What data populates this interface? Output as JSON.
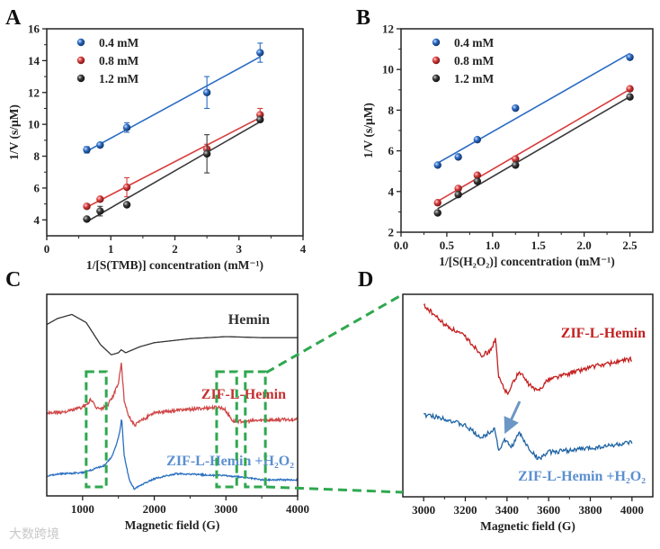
{
  "figure": {
    "panel_letters": [
      "A",
      "B",
      "C",
      "D"
    ],
    "watermark": "大数跨境"
  },
  "chart_data": [
    {
      "panel": "A",
      "type": "scatter",
      "fit": "linear",
      "xlabel": "1/[S(TMB)] concentration (mM⁻¹)",
      "ylabel": "1/V (s/μM)",
      "xlim": [
        0,
        4
      ],
      "ylim": [
        3,
        16
      ],
      "xticks": [
        0,
        1,
        2,
        3,
        4
      ],
      "yticks": [
        4,
        6,
        8,
        10,
        12,
        14,
        16
      ],
      "legend": "top-left",
      "x": [
        0.625,
        0.833,
        1.25,
        2.5,
        3.33
      ],
      "series": [
        {
          "name": "0.4 mM",
          "color": "#2b6cc4",
          "values": [
            8.4,
            8.7,
            9.8,
            12.0,
            14.5
          ],
          "errors": [
            0.2,
            0.1,
            0.3,
            1.0,
            0.6
          ]
        },
        {
          "name": "0.8 mM",
          "color": "#d83c3c",
          "values": [
            4.85,
            5.3,
            6.05,
            8.45,
            10.6
          ],
          "errors": [
            0.1,
            0.1,
            0.6,
            0.3,
            0.4
          ]
        },
        {
          "name": "1.2 mM",
          "color": "#3a3a3a",
          "values": [
            4.05,
            4.55,
            4.95,
            8.15,
            10.3
          ],
          "errors": [
            0.1,
            0.3,
            0.1,
            1.2,
            0.1
          ]
        }
      ]
    },
    {
      "panel": "B",
      "type": "scatter",
      "fit": "linear",
      "xlabel": "1/[S(H₂O₂)] concentration (mM⁻¹)",
      "ylabel": "1/V (s/μM)",
      "xlim": [
        0,
        2.75
      ],
      "ylim": [
        2,
        12
      ],
      "xticks": [
        0.0,
        0.5,
        1.0,
        1.5,
        2.0,
        2.5
      ],
      "xtick_labels": [
        "0.0",
        "0.5",
        "1.0",
        "1.5",
        "2.0",
        "2.5"
      ],
      "yticks": [
        2,
        4,
        6,
        8,
        10,
        12
      ],
      "legend": "top-left",
      "x": [
        0.4,
        0.625,
        0.833,
        1.25,
        2.5
      ],
      "series": [
        {
          "name": "0.4 mM",
          "color": "#2b6cc4",
          "values": [
            5.3,
            5.7,
            6.55,
            8.1,
            10.6
          ]
        },
        {
          "name": "0.8 mM",
          "color": "#d83c3c",
          "values": [
            3.45,
            4.15,
            4.8,
            5.6,
            9.05
          ]
        },
        {
          "name": "1.2 mM",
          "color": "#3a3a3a",
          "values": [
            2.95,
            3.85,
            4.5,
            5.3,
            8.65
          ]
        }
      ]
    },
    {
      "panel": "C",
      "type": "line",
      "xlabel": "Magnetic field (G)",
      "ylabel": "",
      "xlim": [
        500,
        4000
      ],
      "ylim": [
        0,
        100
      ],
      "xticks": [
        1000,
        2000,
        3000,
        4000
      ],
      "highlight_box_ranges": [
        [
          1050,
          1330
        ],
        [
          2870,
          3150
        ],
        [
          3270,
          3550
        ]
      ],
      "series": [
        {
          "name": "Hemin",
          "color": "#333333",
          "label_color": "#333333",
          "noise": 0,
          "x": [
            500,
            650,
            850,
            1050,
            1250,
            1400,
            1500,
            1540,
            1600,
            1800,
            2000,
            2500,
            3000,
            3500,
            4000
          ],
          "y": [
            85,
            88,
            90,
            86,
            75,
            70,
            71,
            72.5,
            71,
            74,
            76,
            78,
            79,
            78.5,
            78.5
          ]
        },
        {
          "name": "ZIF-L-Hemin",
          "color": "#d04848",
          "label_color": "#c62f2f",
          "noise": 1.6,
          "x": [
            500,
            800,
            1000,
            1080,
            1110,
            1180,
            1250,
            1350,
            1430,
            1500,
            1540,
            1580,
            1640,
            1720,
            1850,
            2000,
            2500,
            2900,
            2980,
            3100,
            3300,
            3500,
            4000
          ],
          "y": [
            41,
            42,
            44,
            46,
            48,
            44,
            43,
            45,
            50,
            56,
            66,
            47,
            40,
            35,
            38,
            41.5,
            43,
            44,
            43,
            37,
            37,
            37.5,
            38
          ]
        },
        {
          "name": "ZIF-L-Hemin +H₂O₂",
          "color": "#2a6fc0",
          "label_color": "#5b8fd0",
          "noise": 0.8,
          "x": [
            500,
            700,
            1000,
            1300,
            1400,
            1470,
            1520,
            1545,
            1580,
            1650,
            1720,
            1850,
            2000,
            2300,
            3000,
            3300,
            3400,
            3500,
            4000
          ],
          "y": [
            10,
            11,
            11.5,
            15,
            19,
            25,
            32,
            39,
            20,
            8,
            3.5,
            6,
            8.5,
            11,
            10,
            9,
            8.5,
            8,
            8
          ]
        }
      ]
    },
    {
      "panel": "D",
      "type": "line",
      "xlabel": "Magnetic field (G)",
      "ylabel": "",
      "xlim": [
        2900,
        4100
      ],
      "ylim": [
        0,
        100
      ],
      "xticks": [
        3000,
        3200,
        3400,
        3600,
        3800,
        4000
      ],
      "annotation": "arrow pointing to 3390 G feature of ZIF-L-Hemin +H₂O₂",
      "series": [
        {
          "name": "ZIF-L-Hemin",
          "color": "#c42020",
          "label_color": "#c42020",
          "noise": 2.2,
          "x": [
            3000,
            3100,
            3200,
            3280,
            3320,
            3345,
            3360,
            3400,
            3460,
            3500,
            3545,
            3600,
            3800,
            4000
          ],
          "y": [
            94.7,
            85,
            79,
            70,
            72,
            78,
            59,
            51,
            62,
            56,
            52,
            58,
            64,
            68
          ]
        },
        {
          "name": "ZIF-L-Hemin +H₂O₂",
          "color": "#1f64a4",
          "label_color": "#5b8fd0",
          "noise": 2.2,
          "x": [
            3000,
            3100,
            3200,
            3280,
            3340,
            3360,
            3390,
            3420,
            3460,
            3500,
            3550,
            3600,
            3800,
            4000
          ],
          "y": [
            40.5,
            38.7,
            35,
            29,
            34,
            23,
            28,
            24.5,
            31.5,
            24.5,
            18.7,
            22,
            24,
            26.7
          ]
        }
      ]
    }
  ]
}
